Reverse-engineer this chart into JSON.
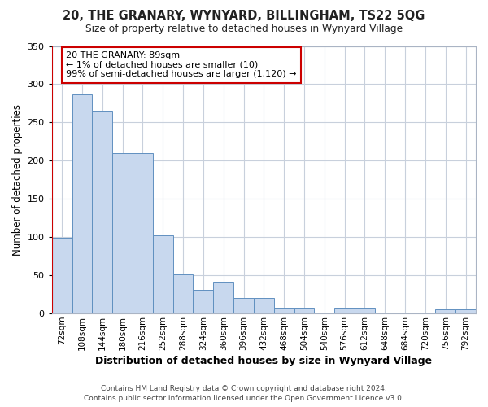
{
  "title": "20, THE GRANARY, WYNYARD, BILLINGHAM, TS22 5QG",
  "subtitle": "Size of property relative to detached houses in Wynyard Village",
  "xlabel": "Distribution of detached houses by size in Wynyard Village",
  "ylabel": "Number of detached properties",
  "footer_line1": "Contains HM Land Registry data © Crown copyright and database right 2024.",
  "footer_line2": "Contains public sector information licensed under the Open Government Licence v3.0.",
  "categories": [
    "72sqm",
    "108sqm",
    "144sqm",
    "180sqm",
    "216sqm",
    "252sqm",
    "288sqm",
    "324sqm",
    "360sqm",
    "396sqm",
    "432sqm",
    "468sqm",
    "504sqm",
    "540sqm",
    "576sqm",
    "612sqm",
    "648sqm",
    "684sqm",
    "720sqm",
    "756sqm",
    "792sqm"
  ],
  "values": [
    99,
    287,
    265,
    210,
    210,
    102,
    51,
    31,
    41,
    20,
    20,
    8,
    8,
    1,
    8,
    8,
    1,
    1,
    1,
    5,
    5
  ],
  "bar_color": "#c8d8ee",
  "bar_edge_color": "#6090c0",
  "highlight_bar_edge_color": "#cc0000",
  "annotation_text": "20 THE GRANARY: 89sqm\n← 1% of detached houses are smaller (10)\n99% of semi-detached houses are larger (1,120) →",
  "annotation_box_facecolor": "#ffffff",
  "annotation_box_edge_color": "#cc0000",
  "red_line_x": -0.5,
  "ylim": [
    0,
    350
  ],
  "background_color": "#ffffff",
  "plot_background_color": "#ffffff",
  "grid_color": "#c8d0dc"
}
